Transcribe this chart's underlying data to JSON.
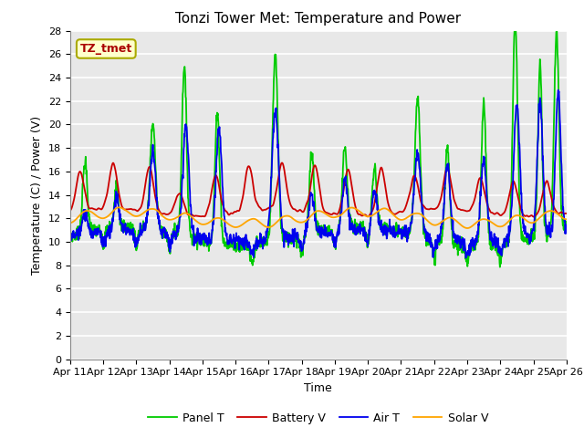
{
  "title": "Tonzi Tower Met: Temperature and Power",
  "xlabel": "Time",
  "ylabel": "Temperature (C) / Power (V)",
  "ylim": [
    0,
    28
  ],
  "yticks": [
    0,
    2,
    4,
    6,
    8,
    10,
    12,
    14,
    16,
    18,
    20,
    22,
    24,
    26,
    28
  ],
  "x_tick_labels": [
    "Apr 11",
    "Apr 12",
    "Apr 13",
    "Apr 14",
    "Apr 15",
    "Apr 16",
    "Apr 17",
    "Apr 18",
    "Apr 19",
    "Apr 20",
    "Apr 21",
    "Apr 22",
    "Apr 23",
    "Apr 24",
    "Apr 25",
    "Apr 26"
  ],
  "legend_labels": [
    "Panel T",
    "Battery V",
    "Air T",
    "Solar V"
  ],
  "colors": {
    "panel_t": "#00CC00",
    "battery_v": "#CC0000",
    "air_t": "#0000EE",
    "solar_v": "#FFA500"
  },
  "annotation_text": "TZ_tmet",
  "annotation_box_facecolor": "#FFFFCC",
  "annotation_box_edgecolor": "#AAAA00",
  "annotation_text_color": "#AA0000",
  "fig_facecolor": "#FFFFFF",
  "ax_facecolor": "#E8E8E8",
  "grid_color": "#FFFFFF",
  "linewidth": 1.3
}
